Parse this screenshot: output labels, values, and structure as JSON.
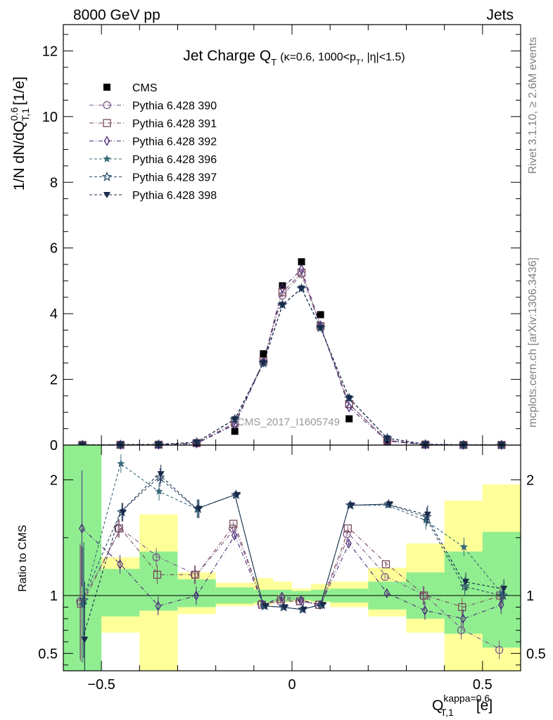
{
  "header": {
    "energy": "8000 GeV pp",
    "process": "Jets",
    "rivet": "Rivet 3.1.10, ≥ 2.6M events",
    "mcplots": "mcplots.cern.ch [arXiv:1306.3436]",
    "watermark": "CMS_2017_I1605749"
  },
  "chart_data": [
    {
      "type": "scatter",
      "panel": "main",
      "title": "Jet Charge Q_T (κ=0.6, 1000<p_T, |η|<1.5)",
      "title_main": "Jet Charge Q",
      "title_sub": "T",
      "title_rest_1": "(κ=0.6, 1000<p",
      "title_rest_2": ", |η|<1.5)",
      "ylabel": "1/N dN/dQ_T,1^0.6 [1/e]",
      "ylabel_main": "1/N dN/dQ",
      "ylabel_sup": "0.6",
      "ylabel_sub": "T,1",
      "ylabel_unit": "[1/e]",
      "xlabel": "",
      "xlim": [
        -0.6,
        0.6
      ],
      "ylim": [
        0,
        12.8
      ],
      "yticks": [
        0,
        2,
        4,
        6,
        8,
        10,
        12
      ],
      "x": [
        -0.55,
        -0.45,
        -0.35,
        -0.25,
        -0.15,
        -0.075,
        -0.025,
        0.025,
        0.075,
        0.15,
        0.25,
        0.35,
        0.45,
        0.55
      ],
      "legend_position": "top-left",
      "series": [
        {
          "name": "CMS",
          "marker": "square-filled",
          "color": "#000000",
          "values": [
            0.005,
            0.006,
            0.01,
            0.05,
            0.42,
            2.78,
            4.85,
            5.58,
            3.97,
            0.8,
            0.12,
            0.015,
            0.006,
            0.004
          ]
        },
        {
          "name": "Pythia 6.428 390",
          "marker": "circle-open",
          "color": "#7a5a8a",
          "values": [
            0.006,
            0.008,
            0.013,
            0.06,
            0.64,
            2.52,
            4.55,
            5.2,
            3.6,
            1.24,
            0.14,
            0.016,
            0.005,
            0.003
          ]
        },
        {
          "name": "Pythia 6.428 391",
          "marker": "square-open",
          "color": "#7a4a5a",
          "values": [
            0.006,
            0.009,
            0.012,
            0.06,
            0.68,
            2.55,
            4.65,
            5.25,
            3.62,
            1.25,
            0.15,
            0.015,
            0.005,
            0.005
          ]
        },
        {
          "name": "Pythia 6.428 392",
          "marker": "diamond-open",
          "color": "#4a2a7a",
          "values": [
            0.007,
            0.007,
            0.009,
            0.05,
            0.62,
            2.52,
            4.78,
            5.35,
            3.64,
            1.15,
            0.12,
            0.013,
            0.005,
            0.004
          ]
        },
        {
          "name": "Pythia 6.428 396",
          "marker": "star-filled",
          "color": "#3a6a7a",
          "values": [
            0.005,
            0.013,
            0.019,
            0.087,
            0.78,
            2.48,
            4.26,
            4.77,
            3.56,
            1.42,
            0.21,
            0.024,
            0.009,
            0.004
          ]
        },
        {
          "name": "Pythia 6.428 397",
          "marker": "star-open",
          "color": "#2a4a6a",
          "values": [
            0.005,
            0.01,
            0.02,
            0.088,
            0.79,
            2.5,
            4.27,
            4.77,
            3.57,
            1.43,
            0.21,
            0.025,
            0.007,
            0.004
          ]
        },
        {
          "name": "Pythia 6.428 398",
          "marker": "triangle-down-filled",
          "color": "#1a2a4a",
          "values": [
            0.003,
            0.01,
            0.02,
            0.088,
            0.79,
            2.5,
            4.27,
            4.77,
            3.57,
            1.43,
            0.21,
            0.025,
            0.007,
            0.004
          ]
        }
      ]
    },
    {
      "type": "scatter",
      "panel": "ratio",
      "ylabel": "Ratio to CMS",
      "xlabel": "Q_T,1^kappa=0.6 [e]",
      "xlabel_main": "Q",
      "xlabel_sup": "kappa=0.6",
      "xlabel_sub": "T,1",
      "xlabel_unit": "[e]",
      "xlim": [
        -0.6,
        0.6
      ],
      "ylim": [
        0.35,
        2.3
      ],
      "yticks": [
        0.5,
        1,
        2
      ],
      "ytick_labels": [
        "0.5",
        "1",
        "2"
      ],
      "xticks": [
        -0.5,
        0,
        0.5
      ],
      "xtick_labels": [
        "−0.5",
        "0",
        "0.5"
      ],
      "uncertainty_bands": {
        "bin_edges": [
          -0.6,
          -0.5,
          -0.4,
          -0.3,
          -0.2,
          -0.1,
          -0.05,
          0,
          0.05,
          0.1,
          0.2,
          0.3,
          0.4,
          0.5,
          0.6
        ],
        "stat": {
          "color": "#90ee90",
          "lo": [
            0.35,
            0.82,
            0.87,
            0.9,
            0.93,
            0.94,
            0.95,
            0.96,
            0.95,
            0.94,
            0.88,
            0.8,
            0.67,
            0.55
          ],
          "hi": [
            2.3,
            1.23,
            1.38,
            1.14,
            1.07,
            1.05,
            1.05,
            1.04,
            1.05,
            1.06,
            1.12,
            1.2,
            1.38,
            1.55
          ]
        },
        "syst": {
          "color": "#ffff99",
          "lo": [
            0.35,
            0.68,
            0.35,
            0.84,
            0.91,
            0.92,
            0.94,
            0.95,
            0.94,
            0.9,
            0.82,
            0.68,
            0.35,
            0.35
          ],
          "hi": [
            2.3,
            1.33,
            1.7,
            1.2,
            1.11,
            1.15,
            1.12,
            1.06,
            1.1,
            1.12,
            1.24,
            1.45,
            1.82,
            1.96
          ]
        }
      },
      "series": [
        {
          "name": "Pythia 6.428 390",
          "values": [
            0.95,
            1.58,
            1.33,
            1.18,
            1.58,
            0.93,
            0.95,
            0.95,
            0.92,
            1.53,
            1.16,
            1.0,
            0.7,
            0.53
          ]
        },
        {
          "name": "Pythia 6.428 391",
          "values": [
            0.93,
            1.58,
            1.18,
            1.18,
            1.62,
            0.92,
            0.97,
            0.95,
            0.92,
            1.58,
            1.27,
            1.0,
            0.9,
            1.0
          ]
        },
        {
          "name": "Pythia 6.428 392",
          "values": [
            1.58,
            1.27,
            0.91,
            1.0,
            1.52,
            0.92,
            0.99,
            0.96,
            0.92,
            1.45,
            1.02,
            0.87,
            0.8,
            0.92
          ]
        },
        {
          "name": "Pythia 6.428 396",
          "values": [
            0.92,
            2.14,
            1.9,
            1.75,
            1.87,
            0.91,
            0.9,
            0.88,
            0.92,
            1.78,
            1.78,
            1.65,
            1.42,
            1.02
          ]
        },
        {
          "name": "Pythia 6.428 397",
          "values": [
            0.96,
            1.72,
            2.02,
            1.75,
            1.87,
            0.91,
            0.9,
            0.88,
            0.92,
            1.78,
            1.79,
            1.68,
            1.08,
            1.0
          ]
        },
        {
          "name": "Pythia 6.428 398",
          "values": [
            0.62,
            1.72,
            2.05,
            1.75,
            1.87,
            0.91,
            0.9,
            0.88,
            0.92,
            1.78,
            1.79,
            1.7,
            1.12,
            1.06
          ]
        }
      ]
    }
  ]
}
